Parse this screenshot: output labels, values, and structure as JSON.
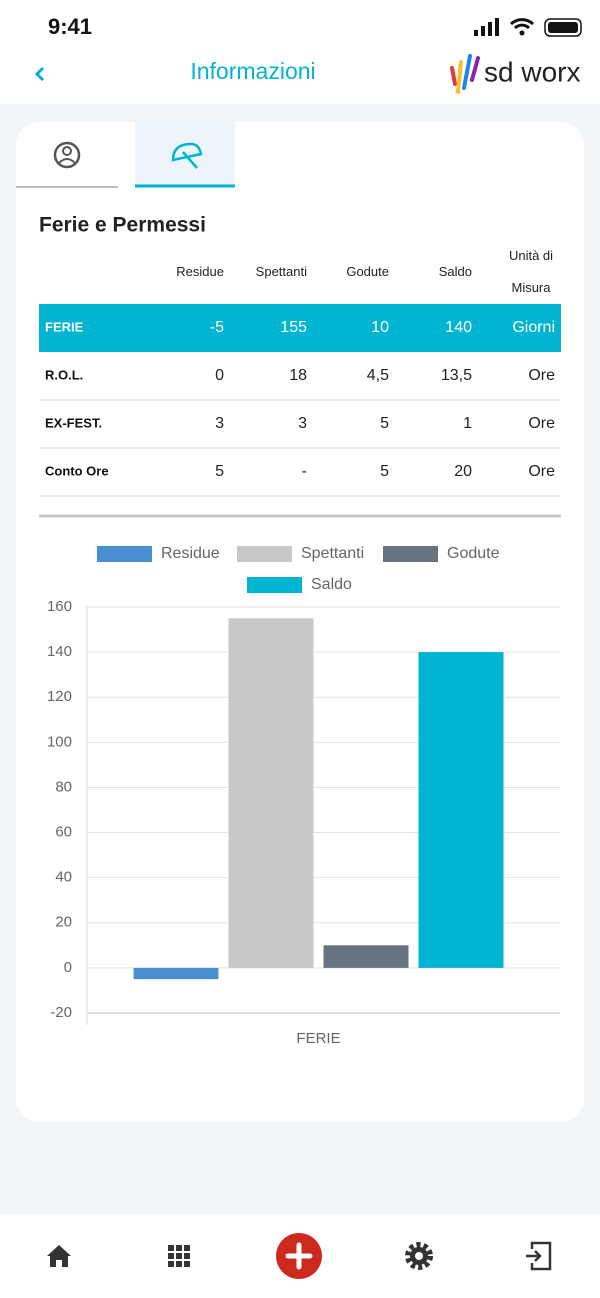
{
  "status_bar": {
    "time": "9:41"
  },
  "header": {
    "title": "Informazioni",
    "logo": "sd worx"
  },
  "section_title": "Ferie e Permessi",
  "table": {
    "columns": [
      "Residue",
      "Spettanti",
      "Godute",
      "Saldo",
      "Unità di Misura"
    ],
    "rows": [
      [
        "FERIE",
        "-5",
        "155",
        "10",
        "140",
        "Giorni"
      ],
      [
        "R.O.L.",
        "0",
        "18",
        "4,5",
        "13,5",
        "Ore"
      ],
      [
        "EX-FEST.",
        "3",
        "3",
        "5",
        "1",
        "Ore"
      ],
      [
        "Conto Ore",
        "5",
        "-",
        "5",
        "20",
        "Ore"
      ]
    ]
  },
  "chart_data": {
    "type": "bar",
    "categories": [
      "FERIE"
    ],
    "series": [
      {
        "name": "Residue",
        "color": "#4a8fd4",
        "values": [
          -5
        ]
      },
      {
        "name": "Spettanti",
        "color": "#c8c8c8",
        "values": [
          155
        ]
      },
      {
        "name": "Godute",
        "color": "#67737e",
        "values": [
          10
        ]
      },
      {
        "name": "Saldo",
        "color": "#00b4d2",
        "values": [
          140
        ]
      }
    ],
    "ylim": [
      -20,
      160
    ],
    "yticks": [
      -20,
      0,
      20,
      40,
      60,
      80,
      100,
      120,
      140,
      160
    ],
    "grid": true
  }
}
